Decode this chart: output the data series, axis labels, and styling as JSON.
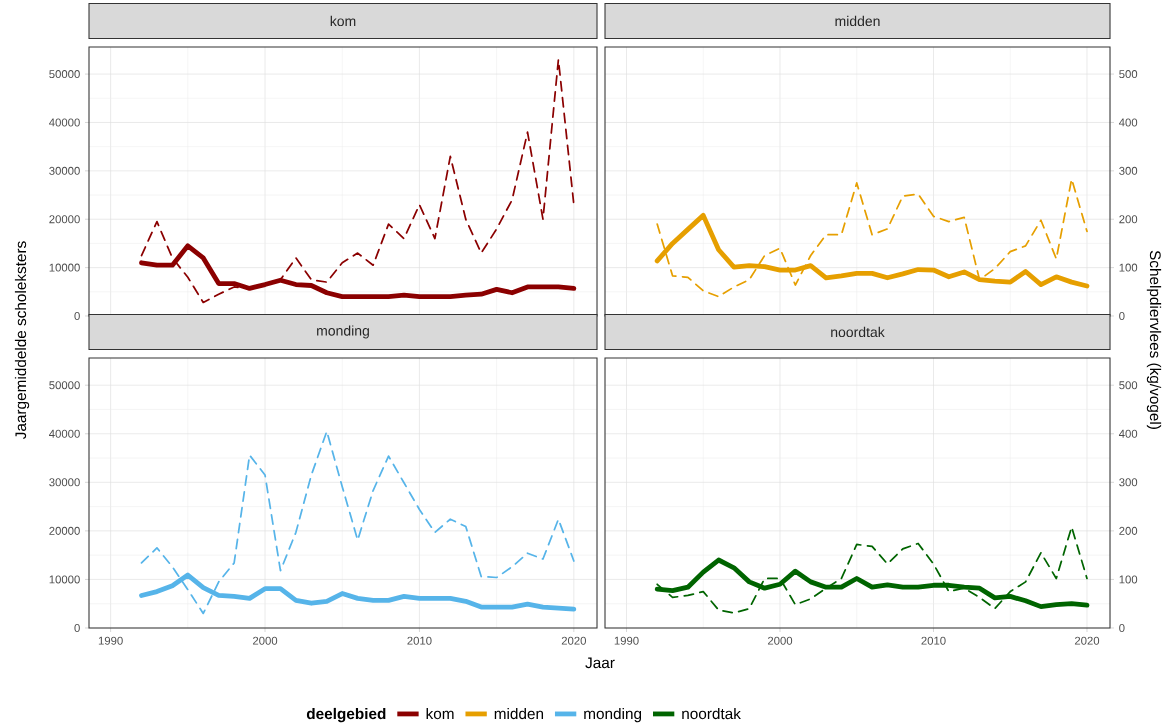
{
  "chart_data": [
    {
      "type": "line",
      "title": "kom",
      "xlabel": "Jaar",
      "ylabel": "Jaargemiddelde scholeksters",
      "y2label": "Schelpdiervlees (kg/vogel)",
      "legend_title": "deelgebied",
      "legend": "bottom",
      "grid": true,
      "tick_labels": "y",
      "x": [
        1992,
        1993,
        1994,
        1995,
        1996,
        1997,
        1998,
        1999,
        2000,
        2001,
        2002,
        2003,
        2004,
        2005,
        2006,
        2007,
        2008,
        2009,
        2010,
        2011,
        2012,
        2013,
        2014,
        2015,
        2016,
        2017,
        2018,
        2019,
        2020
      ],
      "xlim": [
        1988.6,
        2021.5
      ],
      "ylim": [
        0,
        55600
      ],
      "yticks": [
        0,
        10000,
        20000,
        30000,
        40000,
        50000
      ],
      "y2lim": [
        0,
        556
      ],
      "series": [
        {
          "name": "kom",
          "color": "#8b0000",
          "line_style": "solid",
          "values": [
            11000,
            10500,
            10500,
            14500,
            12000,
            6700,
            6700,
            5700,
            6500,
            7400,
            6500,
            6300,
            4800,
            4000,
            4000,
            4000,
            4000,
            4300,
            4000,
            4000,
            4000,
            4300,
            4500,
            5500,
            4800,
            6000,
            6000,
            6000,
            5700
          ]
        },
        {
          "color": "#8b0000",
          "line_style": "dashed",
          "axis": "y2",
          "values": [
            125,
            195,
            120,
            80,
            28,
            45,
            60,
            57,
            65,
            75,
            120,
            75,
            70,
            110,
            130,
            105,
            190,
            160,
            230,
            160,
            330,
            200,
            130,
            180,
            240,
            380,
            200,
            530,
            230
          ]
        }
      ]
    },
    {
      "type": "line",
      "title": "midden",
      "legend": "bottom",
      "grid": true,
      "tick_labels": "y2",
      "x": [
        1992,
        1993,
        1994,
        1995,
        1996,
        1997,
        1998,
        1999,
        2000,
        2001,
        2002,
        2003,
        2004,
        2005,
        2006,
        2007,
        2008,
        2009,
        2010,
        2011,
        2012,
        2013,
        2014,
        2015,
        2016,
        2017,
        2018,
        2019,
        2020
      ],
      "xlim": [
        1988.6,
        2021.5
      ],
      "ylim": [
        0,
        55600
      ],
      "y2lim": [
        0,
        556
      ],
      "y2ticks": [
        0,
        100,
        200,
        300,
        400,
        500
      ],
      "series": [
        {
          "name": "midden",
          "color": "#e69f00",
          "line_style": "solid",
          "values": [
            11400,
            15000,
            17900,
            20800,
            13700,
            10100,
            10400,
            10200,
            9500,
            9500,
            10400,
            7900,
            8300,
            8800,
            8800,
            7900,
            8700,
            9600,
            9500,
            8100,
            9100,
            7500,
            7200,
            7000,
            9200,
            6500,
            8100,
            7000,
            6200
          ]
        },
        {
          "color": "#e69f00",
          "line_style": "dashed",
          "axis": "y2",
          "values": [
            190,
            83,
            80,
            52,
            40,
            60,
            75,
            125,
            140,
            64,
            125,
            168,
            168,
            275,
            168,
            180,
            248,
            252,
            206,
            195,
            204,
            75,
            98,
            133,
            145,
            198,
            118,
            283,
            175
          ]
        }
      ]
    },
    {
      "type": "line",
      "title": "monding",
      "legend": "bottom",
      "grid": true,
      "tick_labels": "xy",
      "x": [
        1992,
        1993,
        1994,
        1995,
        1996,
        1997,
        1998,
        1999,
        2000,
        2001,
        2002,
        2003,
        2004,
        2005,
        2006,
        2007,
        2008,
        2009,
        2010,
        2011,
        2012,
        2013,
        2014,
        2015,
        2016,
        2017,
        2018,
        2019,
        2020
      ],
      "xlim": [
        1988.6,
        2021.5
      ],
      "xticks": [
        1990,
        2000,
        2010,
        2020
      ],
      "ylim": [
        0,
        55600
      ],
      "yticks": [
        0,
        10000,
        20000,
        30000,
        40000,
        50000
      ],
      "y2lim": [
        0,
        556
      ],
      "series": [
        {
          "name": "monding",
          "color": "#56b4e9",
          "line_style": "solid",
          "values": [
            6700,
            7500,
            8700,
            10900,
            8300,
            6700,
            6500,
            6100,
            8100,
            8100,
            5700,
            5100,
            5500,
            7100,
            6100,
            5700,
            5700,
            6500,
            6100,
            6100,
            6100,
            5500,
            4300,
            4300,
            4300,
            4900,
            4300,
            4100,
            3900
          ]
        },
        {
          "color": "#56b4e9",
          "line_style": "dashed",
          "axis": "y2",
          "values": [
            134,
            165,
            126,
            79,
            30,
            95,
            134,
            356,
            315,
            118,
            197,
            315,
            405,
            291,
            181,
            283,
            354,
            299,
            244,
            197,
            224,
            209,
            106,
            104,
            126,
            154,
            142,
            224,
            138
          ]
        }
      ]
    },
    {
      "type": "line",
      "title": "noordtak",
      "legend": "bottom",
      "grid": true,
      "tick_labels": "xy2",
      "x": [
        1992,
        1993,
        1994,
        1995,
        1996,
        1997,
        1998,
        1999,
        2000,
        2001,
        2002,
        2003,
        2004,
        2005,
        2006,
        2007,
        2008,
        2009,
        2010,
        2011,
        2012,
        2013,
        2014,
        2015,
        2016,
        2017,
        2018,
        2019,
        2020
      ],
      "xlim": [
        1988.6,
        2021.5
      ],
      "xticks": [
        1990,
        2000,
        2010,
        2020
      ],
      "ylim": [
        0,
        55600
      ],
      "y2lim": [
        0,
        556
      ],
      "y2ticks": [
        0,
        100,
        200,
        300,
        400,
        500
      ],
      "series": [
        {
          "name": "noordtak",
          "color": "#006400",
          "line_style": "solid",
          "values": [
            8000,
            7700,
            8400,
            11500,
            14000,
            12400,
            9500,
            8200,
            9000,
            11700,
            9500,
            8400,
            8400,
            10200,
            8400,
            8900,
            8400,
            8400,
            8800,
            8800,
            8400,
            8200,
            6200,
            6500,
            5600,
            4400,
            4800,
            5000,
            4700
          ]
        },
        {
          "color": "#006400",
          "line_style": "dashed",
          "axis": "y2",
          "values": [
            90,
            63,
            67,
            75,
            37,
            31,
            40,
            102,
            102,
            48,
            60,
            82,
            102,
            172,
            168,
            132,
            163,
            174,
            132,
            75,
            82,
            63,
            40,
            75,
            95,
            155,
            102,
            208,
            102
          ]
        }
      ]
    }
  ]
}
